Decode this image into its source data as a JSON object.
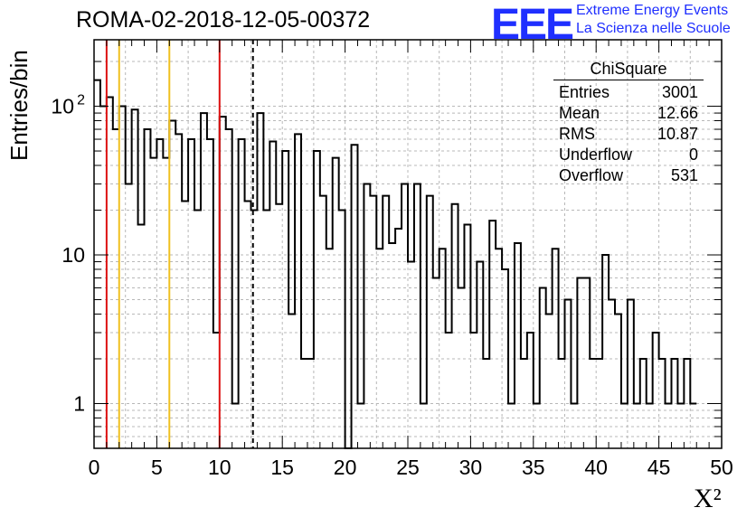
{
  "title": "ROMA-02-2018-12-05-00372",
  "logo": {
    "text": "EEE",
    "line1": "Extreme Energy Events",
    "line2": "La Scienza nelle Scuole",
    "color": "#1f2fff"
  },
  "stats": {
    "title": "ChiSquare",
    "rows": [
      {
        "label": "Entries",
        "value": "3001"
      },
      {
        "label": "Mean",
        "value": "12.66"
      },
      {
        "label": "RMS",
        "value": "10.87"
      },
      {
        "label": "Underflow",
        "value": "0"
      },
      {
        "label": "Overflow",
        "value": "531"
      }
    ]
  },
  "chart_data": {
    "type": "bar",
    "style": "step-histogram",
    "title": "ROMA-02-2018-12-05-00372",
    "xlabel": "X²",
    "ylabel": "Entries/bin",
    "xlim": [
      0,
      50
    ],
    "ylim": [
      0.5,
      280
    ],
    "yscale": "log",
    "grid": true,
    "bin_width": 0.5,
    "xticks": [
      "0",
      "5",
      "10",
      "15",
      "20",
      "25",
      "30",
      "35",
      "40",
      "45",
      "50"
    ],
    "yticks": [
      {
        "value": 1,
        "label": "1"
      },
      {
        "value": 10,
        "label": "10"
      },
      {
        "value": 100,
        "label": "10²"
      }
    ],
    "values": [
      150,
      100,
      115,
      70,
      100,
      30,
      95,
      16,
      70,
      45,
      60,
      45,
      80,
      65,
      23,
      60,
      20,
      90,
      60,
      3,
      85,
      70,
      1,
      60,
      23,
      20,
      90,
      20,
      58,
      22,
      50,
      4,
      65,
      2,
      2,
      50,
      25,
      11,
      45,
      20,
      0,
      55,
      1,
      30,
      25,
      11,
      25,
      12,
      15,
      30,
      9,
      30,
      1,
      25,
      7,
      11,
      3,
      22,
      6,
      16,
      3,
      9,
      2,
      17,
      11,
      8,
      1,
      12,
      2,
      3,
      1,
      6,
      4,
      11,
      2,
      5,
      1,
      7,
      7,
      2,
      2,
      10,
      5,
      4,
      1,
      5,
      1,
      2,
      1,
      3,
      2,
      1,
      2,
      1,
      2,
      1
    ]
  },
  "vlines": [
    {
      "x": 1,
      "color": "#dd1111"
    },
    {
      "x": 2,
      "color": "#f0c020"
    },
    {
      "x": 6,
      "color": "#f0c020"
    },
    {
      "x": 10,
      "color": "#dd1111"
    },
    {
      "x": 12.66,
      "color": "#000000",
      "dashed": true
    }
  ]
}
